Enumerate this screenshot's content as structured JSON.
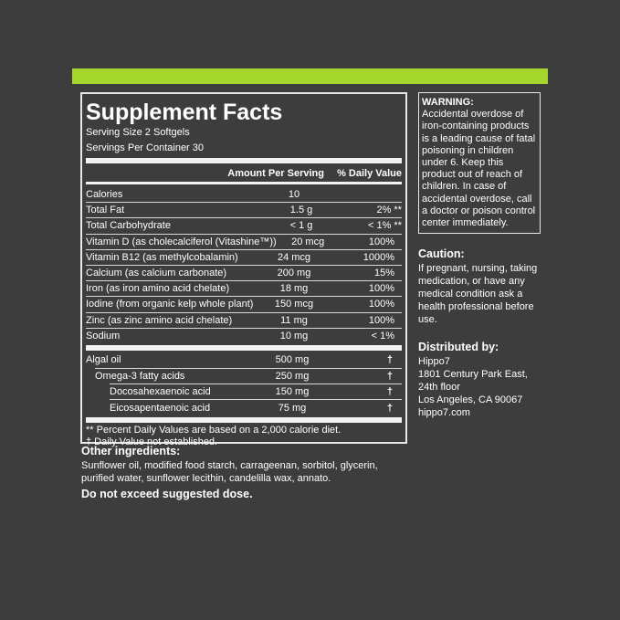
{
  "accent": "#a5d62b",
  "facts": {
    "title": "Supplement Facts",
    "serving_size": "Serving Size 2 Softgels",
    "servings_per_container": "Servings Per Container 30",
    "col_amount": "Amount Per Serving",
    "col_dv": "% Daily Value",
    "rows": [
      {
        "name": "Calories",
        "amount": "10",
        "dv": ""
      },
      {
        "name": "Total Fat",
        "amount": "1.5 g",
        "dv": "2% **"
      },
      {
        "name": "Total Carbohydrate",
        "amount": "< 1 g",
        "dv": "< 1% **"
      },
      {
        "name": "Vitamin D (as cholecalciferol (Vitashine™))",
        "amount": "20 mcg",
        "dv": "100%"
      },
      {
        "name": "Vitamin B12 (as methylcobalamin)",
        "amount": "24 mcg",
        "dv": "1000%"
      },
      {
        "name": "Calcium (as calcium carbonate)",
        "amount": "200 mg",
        "dv": "15%"
      },
      {
        "name": "Iron (as iron amino acid chelate)",
        "amount": "18 mg",
        "dv": "100%"
      },
      {
        "name": "Iodine (from organic kelp whole plant)",
        "amount": "150 mcg",
        "dv": "100%"
      },
      {
        "name": "Zinc (as zinc amino acid chelate)",
        "amount": "11 mg",
        "dv": "100%"
      },
      {
        "name": "Sodium",
        "amount": "10 mg",
        "dv": "< 1%"
      }
    ],
    "rows2": [
      {
        "name": "Algal oil",
        "amount": "500 mg",
        "dv": "†"
      },
      {
        "name": "Omega-3 fatty acids",
        "amount": "250 mg",
        "dv": "†"
      },
      {
        "name": "Docosahexaenoic acid",
        "amount": "150 mg",
        "dv": "†"
      },
      {
        "name": "Eicosapentaenoic acid",
        "amount": "75 mg",
        "dv": "†"
      }
    ],
    "footnote1": "** Percent Daily Values are based on  a 2,000 calorie diet.",
    "footnote2": "† Daily Value not established."
  },
  "other": {
    "heading": "Other ingredients:",
    "text": "Sunflower oil, modified food starch, carrageenan, sorbitol, glycerin, purified water, sunflower lecithin, candelilla wax, annato.",
    "dose": "Do not exceed suggested dose."
  },
  "warning": {
    "heading": "WARNING:",
    "text": "Accidental overdose of iron-containing products is a leading cause of fatal poisoning in children under 6. Keep this product out of reach of children. In case of accidental overdose, call a doctor or poison control center immediately."
  },
  "caution": {
    "heading": "Caution:",
    "text": "If pregnant, nursing, taking medication, or have any medical condition ask a health professional before use."
  },
  "distributor": {
    "heading": "Distributed by:",
    "lines": [
      "Hippo7",
      "1801 Century Park East,",
      "24th floor",
      "Los Angeles, CA 90067",
      "hippo7.com"
    ]
  }
}
